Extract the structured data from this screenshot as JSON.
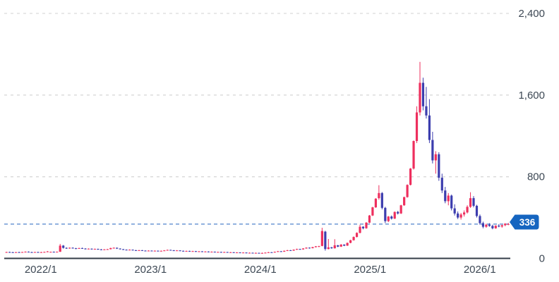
{
  "chart_data": {
    "type": "candlestick",
    "title": "",
    "xlabel": "",
    "ylabel": "",
    "x_ticks": [
      {
        "label": "2022/1",
        "year": 2022
      },
      {
        "label": "2023/1",
        "year": 2023
      },
      {
        "label": "2024/1",
        "year": 2024
      },
      {
        "label": "2025/1",
        "year": 2025
      },
      {
        "label": "2026/1",
        "year": 2026
      }
    ],
    "y_ticks": [
      {
        "label": "0",
        "value": 0
      },
      {
        "label": "800",
        "value": 800
      },
      {
        "label": "1,600",
        "value": 1600
      },
      {
        "label": "2,400",
        "value": 2400
      }
    ],
    "ylim": [
      0,
      2400
    ],
    "time_start": 2021.68,
    "time_end": 2026.28,
    "grid": "dashed-horizontal",
    "legend": "none",
    "current_price": 336,
    "current_price_label": "336",
    "colors": {
      "up_candle": "#ee2f5e",
      "down_candle": "#3c3dae",
      "grid_line": "#d9d9d9",
      "axis_line": "#333c47",
      "tick_label": "#3d4854",
      "price_line": "#4f83cb",
      "badge_bg": "#1565c0",
      "badge_text": "#ffffff",
      "background": "#ffffff"
    },
    "ohlc_note": "weekly-style candles [open,high,low,close], time ascending from 2021.68 to 2026.28 in equal steps",
    "candles": [
      [
        58,
        65,
        55,
        62
      ],
      [
        62,
        66,
        58,
        60
      ],
      [
        60,
        64,
        55,
        57
      ],
      [
        57,
        63,
        54,
        61
      ],
      [
        61,
        65,
        57,
        59
      ],
      [
        59,
        64,
        56,
        62
      ],
      [
        62,
        68,
        60,
        65
      ],
      [
        65,
        68,
        59,
        61
      ],
      [
        61,
        65,
        57,
        59
      ],
      [
        59,
        64,
        56,
        62
      ],
      [
        62,
        65,
        55,
        58
      ],
      [
        58,
        64,
        55,
        61
      ],
      [
        61,
        66,
        58,
        63
      ],
      [
        63,
        72,
        61,
        68
      ],
      [
        61,
        66,
        58,
        64
      ],
      [
        64,
        68,
        60,
        62
      ],
      [
        62,
        67,
        59,
        65
      ],
      [
        65,
        142,
        63,
        125
      ],
      [
        125,
        131,
        96,
        103
      ],
      [
        103,
        108,
        93,
        97
      ],
      [
        97,
        107,
        95,
        104
      ],
      [
        104,
        108,
        96,
        99
      ],
      [
        99,
        103,
        91,
        95
      ],
      [
        95,
        104,
        93,
        101
      ],
      [
        101,
        105,
        93,
        96
      ],
      [
        96,
        100,
        88,
        92
      ],
      [
        92,
        98,
        89,
        95
      ],
      [
        95,
        97,
        86,
        90
      ],
      [
        90,
        96,
        87,
        93
      ],
      [
        93,
        95,
        84,
        88
      ],
      [
        88,
        92,
        81,
        85
      ],
      [
        85,
        91,
        83,
        88
      ],
      [
        88,
        93,
        84,
        90
      ],
      [
        90,
        104,
        88,
        101
      ],
      [
        101,
        107,
        96,
        104
      ],
      [
        104,
        106,
        92,
        96
      ],
      [
        96,
        99,
        87,
        90
      ],
      [
        90,
        93,
        82,
        85
      ],
      [
        85,
        88,
        79,
        82
      ],
      [
        82,
        88,
        80,
        85
      ],
      [
        85,
        87,
        77,
        80
      ],
      [
        80,
        83,
        74,
        77
      ],
      [
        77,
        83,
        75,
        80
      ],
      [
        80,
        82,
        73,
        76
      ],
      [
        76,
        79,
        70,
        73
      ],
      [
        73,
        79,
        71,
        76
      ],
      [
        76,
        78,
        69,
        72
      ],
      [
        72,
        78,
        70,
        75
      ],
      [
        75,
        77,
        68,
        71
      ],
      [
        71,
        77,
        69,
        74
      ],
      [
        74,
        81,
        72,
        78
      ],
      [
        78,
        86,
        76,
        83
      ],
      [
        83,
        85,
        76,
        79
      ],
      [
        79,
        82,
        72,
        75
      ],
      [
        75,
        81,
        73,
        78
      ],
      [
        78,
        80,
        71,
        74
      ],
      [
        74,
        77,
        67,
        70
      ],
      [
        70,
        76,
        68,
        73
      ],
      [
        73,
        75,
        65,
        68
      ],
      [
        68,
        74,
        66,
        71
      ],
      [
        71,
        73,
        63,
        66
      ],
      [
        66,
        72,
        64,
        69
      ],
      [
        69,
        71,
        61,
        64
      ],
      [
        64,
        70,
        62,
        67
      ],
      [
        67,
        69,
        59,
        62
      ],
      [
        62,
        68,
        60,
        65
      ],
      [
        65,
        67,
        58,
        61
      ],
      [
        61,
        66,
        59,
        63
      ],
      [
        63,
        65,
        56,
        59
      ],
      [
        59,
        65,
        57,
        62
      ],
      [
        62,
        64,
        55,
        58
      ],
      [
        58,
        63,
        56,
        60
      ],
      [
        60,
        62,
        53,
        56
      ],
      [
        56,
        61,
        54,
        58
      ],
      [
        58,
        60,
        52,
        55
      ],
      [
        55,
        60,
        53,
        57
      ],
      [
        57,
        59,
        50,
        53
      ],
      [
        53,
        58,
        51,
        55
      ],
      [
        55,
        57,
        49,
        52
      ],
      [
        52,
        57,
        50,
        54
      ],
      [
        54,
        56,
        48,
        51
      ],
      [
        51,
        57,
        49,
        53
      ],
      [
        53,
        59,
        51,
        56
      ],
      [
        56,
        63,
        54,
        60
      ],
      [
        60,
        62,
        55,
        58
      ],
      [
        58,
        67,
        56,
        64
      ],
      [
        64,
        73,
        62,
        70
      ],
      [
        70,
        72,
        63,
        66
      ],
      [
        66,
        77,
        64,
        74
      ],
      [
        74,
        83,
        72,
        80
      ],
      [
        80,
        82,
        73,
        76
      ],
      [
        76,
        88,
        74,
        85
      ],
      [
        85,
        95,
        83,
        92
      ],
      [
        92,
        94,
        85,
        88
      ],
      [
        88,
        100,
        86,
        97
      ],
      [
        97,
        108,
        95,
        105
      ],
      [
        105,
        107,
        96,
        100
      ],
      [
        100,
        113,
        98,
        110
      ],
      [
        110,
        121,
        108,
        118
      ],
      [
        118,
        123,
        110,
        120
      ],
      [
        122,
        300,
        118,
        268
      ],
      [
        262,
        270,
        76,
        92
      ],
      [
        92,
        190,
        88,
        108
      ],
      [
        108,
        112,
        95,
        99
      ],
      [
        99,
        188,
        96,
        128
      ],
      [
        128,
        132,
        110,
        115
      ],
      [
        115,
        140,
        112,
        135
      ],
      [
        135,
        138,
        120,
        125
      ],
      [
        125,
        155,
        122,
        152
      ],
      [
        152,
        182,
        148,
        178
      ],
      [
        178,
        215,
        174,
        210
      ],
      [
        210,
        255,
        205,
        250
      ],
      [
        250,
        330,
        245,
        310
      ],
      [
        310,
        315,
        285,
        295
      ],
      [
        295,
        355,
        290,
        350
      ],
      [
        350,
        425,
        345,
        420
      ],
      [
        420,
        505,
        415,
        500
      ],
      [
        500,
        590,
        495,
        585
      ],
      [
        590,
        717,
        575,
        640
      ],
      [
        640,
        650,
        480,
        495
      ],
      [
        495,
        505,
        345,
        365
      ],
      [
        365,
        415,
        355,
        410
      ],
      [
        410,
        420,
        380,
        390
      ],
      [
        390,
        460,
        385,
        455
      ],
      [
        455,
        465,
        430,
        440
      ],
      [
        440,
        525,
        435,
        520
      ],
      [
        520,
        605,
        515,
        600
      ],
      [
        600,
        725,
        595,
        720
      ],
      [
        720,
        885,
        715,
        880
      ],
      [
        880,
        1155,
        870,
        1150
      ],
      [
        1150,
        1490,
        1130,
        1430
      ],
      [
        1430,
        1925,
        1400,
        1720
      ],
      [
        1720,
        1770,
        1450,
        1490
      ],
      [
        1490,
        1680,
        1370,
        1400
      ],
      [
        1400,
        1560,
        1130,
        1160
      ],
      [
        1160,
        1240,
        930,
        960
      ],
      [
        960,
        1050,
        830,
        1020
      ],
      [
        1020,
        1040,
        760,
        790
      ],
      [
        790,
        830,
        640,
        665
      ],
      [
        665,
        700,
        540,
        560
      ],
      [
        560,
        640,
        520,
        615
      ],
      [
        615,
        625,
        470,
        490
      ],
      [
        490,
        530,
        420,
        440
      ],
      [
        440,
        460,
        385,
        400
      ],
      [
        400,
        445,
        380,
        430
      ],
      [
        430,
        470,
        410,
        450
      ],
      [
        450,
        520,
        440,
        505
      ],
      [
        505,
        648,
        495,
        590
      ],
      [
        590,
        610,
        500,
        515
      ],
      [
        515,
        525,
        400,
        415
      ],
      [
        415,
        430,
        330,
        345
      ],
      [
        345,
        360,
        295,
        310
      ],
      [
        310,
        340,
        300,
        330
      ],
      [
        330,
        345,
        310,
        318
      ],
      [
        318,
        330,
        285,
        295
      ],
      [
        295,
        325,
        290,
        320
      ],
      [
        320,
        335,
        305,
        312
      ],
      [
        312,
        330,
        300,
        325
      ],
      [
        325,
        345,
        315,
        340
      ],
      [
        330,
        348,
        325,
        336
      ]
    ]
  }
}
